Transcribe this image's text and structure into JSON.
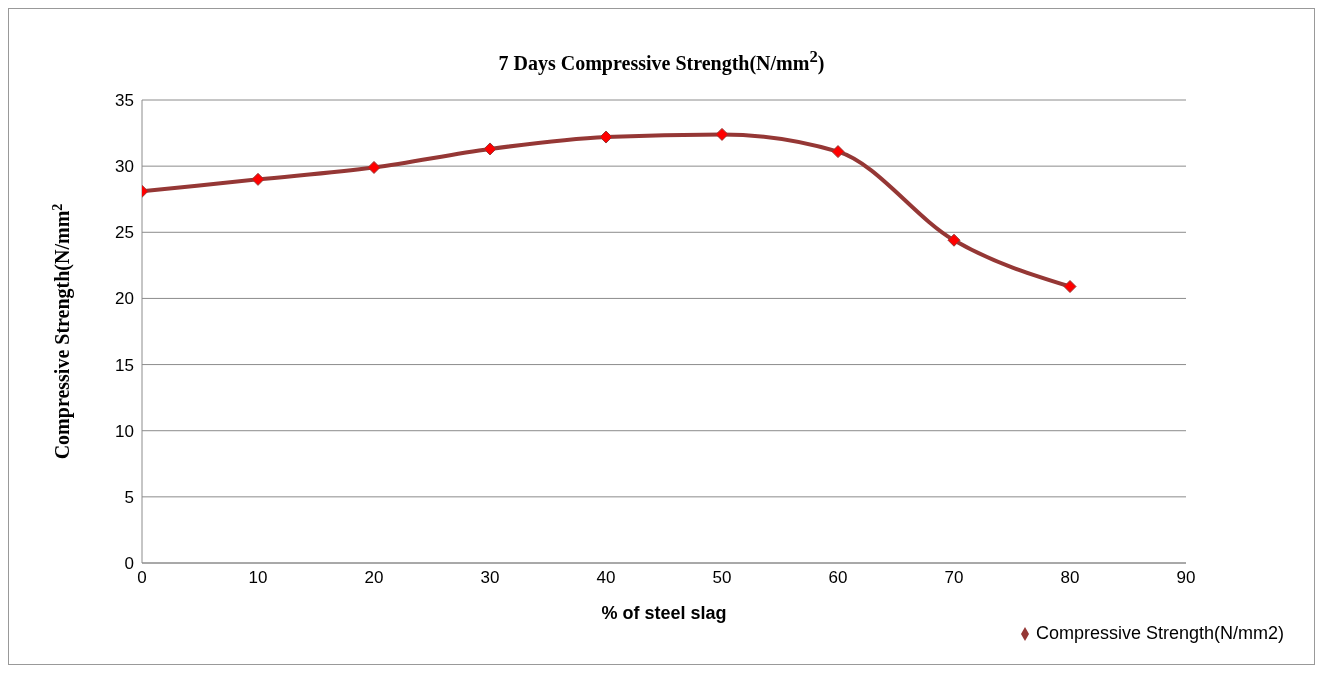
{
  "chart_data": {
    "type": "line",
    "title": "7 Days Compressive Strength(N/mm$^{2}$)",
    "xlabel": "% of steel slag",
    "ylabel": "Compressive Strength(N/mm$^{2}$",
    "x": [
      0,
      10,
      20,
      30,
      40,
      50,
      60,
      70,
      80
    ],
    "series": [
      {
        "name": "Compressive Strength(N/mm2)",
        "color": "#953735",
        "values": [
          28.1,
          29,
          29.9,
          31.3,
          32.2,
          32.4,
          31.1,
          24.4,
          20.9
        ]
      }
    ],
    "xlim": [
      0,
      90
    ],
    "xticks": [
      0,
      10,
      20,
      30,
      40,
      50,
      60,
      70,
      80,
      90
    ],
    "ylim": [
      0,
      35
    ],
    "yticks": [
      0,
      5,
      10,
      15,
      20,
      25,
      30,
      35
    ],
    "grid": "y",
    "legend": "bottom right",
    "marker": "diamond",
    "line_style": "solid"
  }
}
